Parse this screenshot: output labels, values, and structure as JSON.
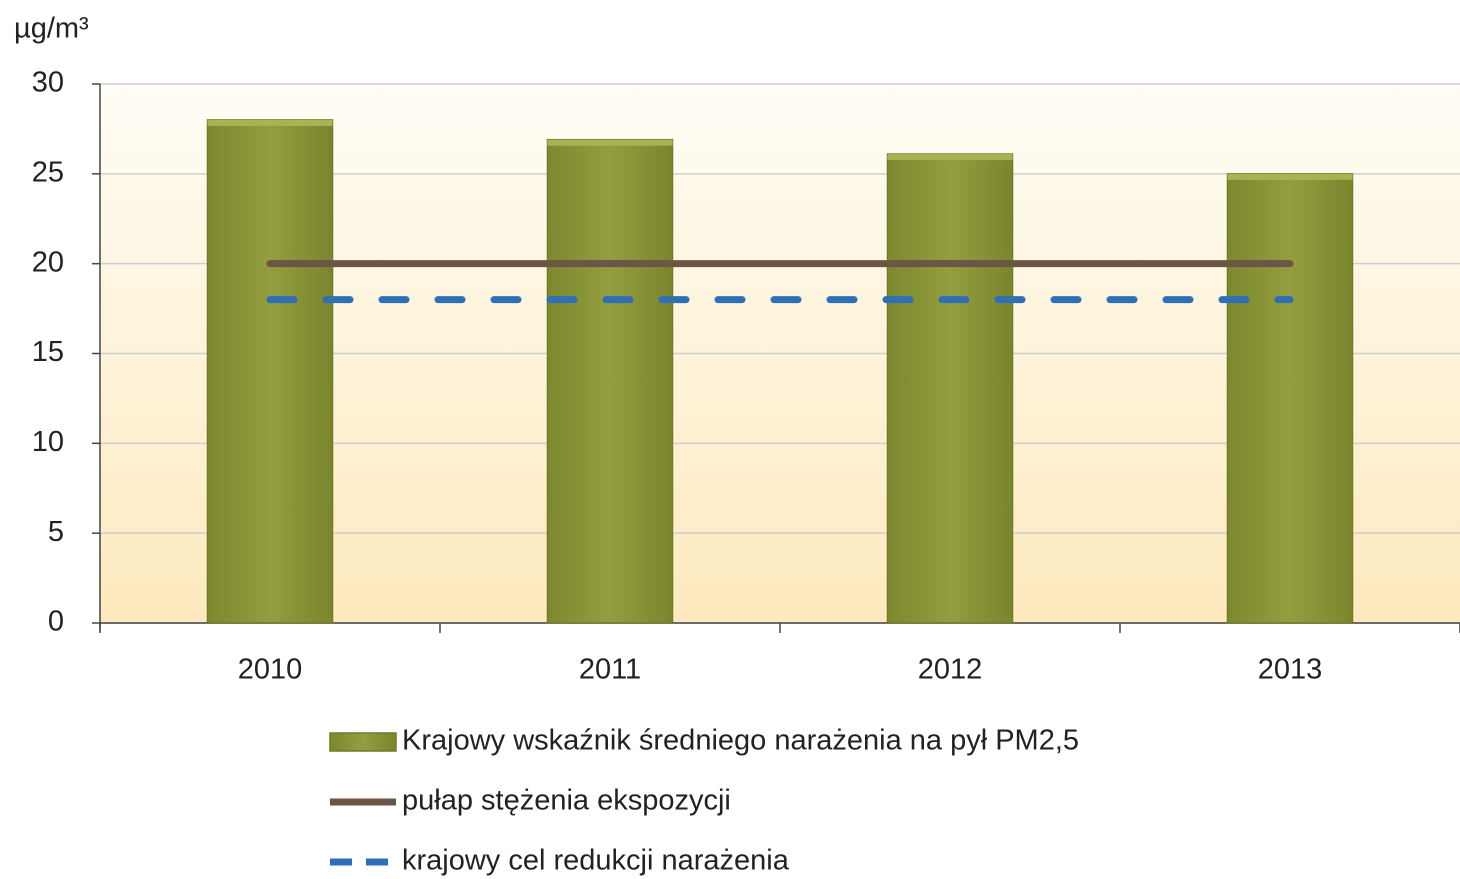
{
  "chart_data": {
    "type": "bar",
    "y_label": "µg/m³",
    "categories": [
      "2010",
      "2011",
      "2012",
      "2013"
    ],
    "series": [
      {
        "name": "Krajowy wskaźnik średniego narażenia na pył PM2,5",
        "type": "bar",
        "color": "#8f9a3c",
        "values": [
          28,
          26.9,
          26.1,
          25
        ]
      },
      {
        "name": "pułap stężenia ekspozycji",
        "type": "line",
        "color": "#6b5646",
        "values": [
          20,
          20,
          20,
          20
        ]
      },
      {
        "name": "krajowy cel redukcji narażenia",
        "type": "line",
        "style": "dashed",
        "color": "#2e6fb5",
        "values": [
          18,
          18,
          18,
          18
        ]
      }
    ],
    "ylim": [
      0,
      30
    ],
    "yticks": [
      0,
      5,
      10,
      15,
      20,
      25,
      30
    ],
    "grid": true,
    "legend": "bottom"
  }
}
